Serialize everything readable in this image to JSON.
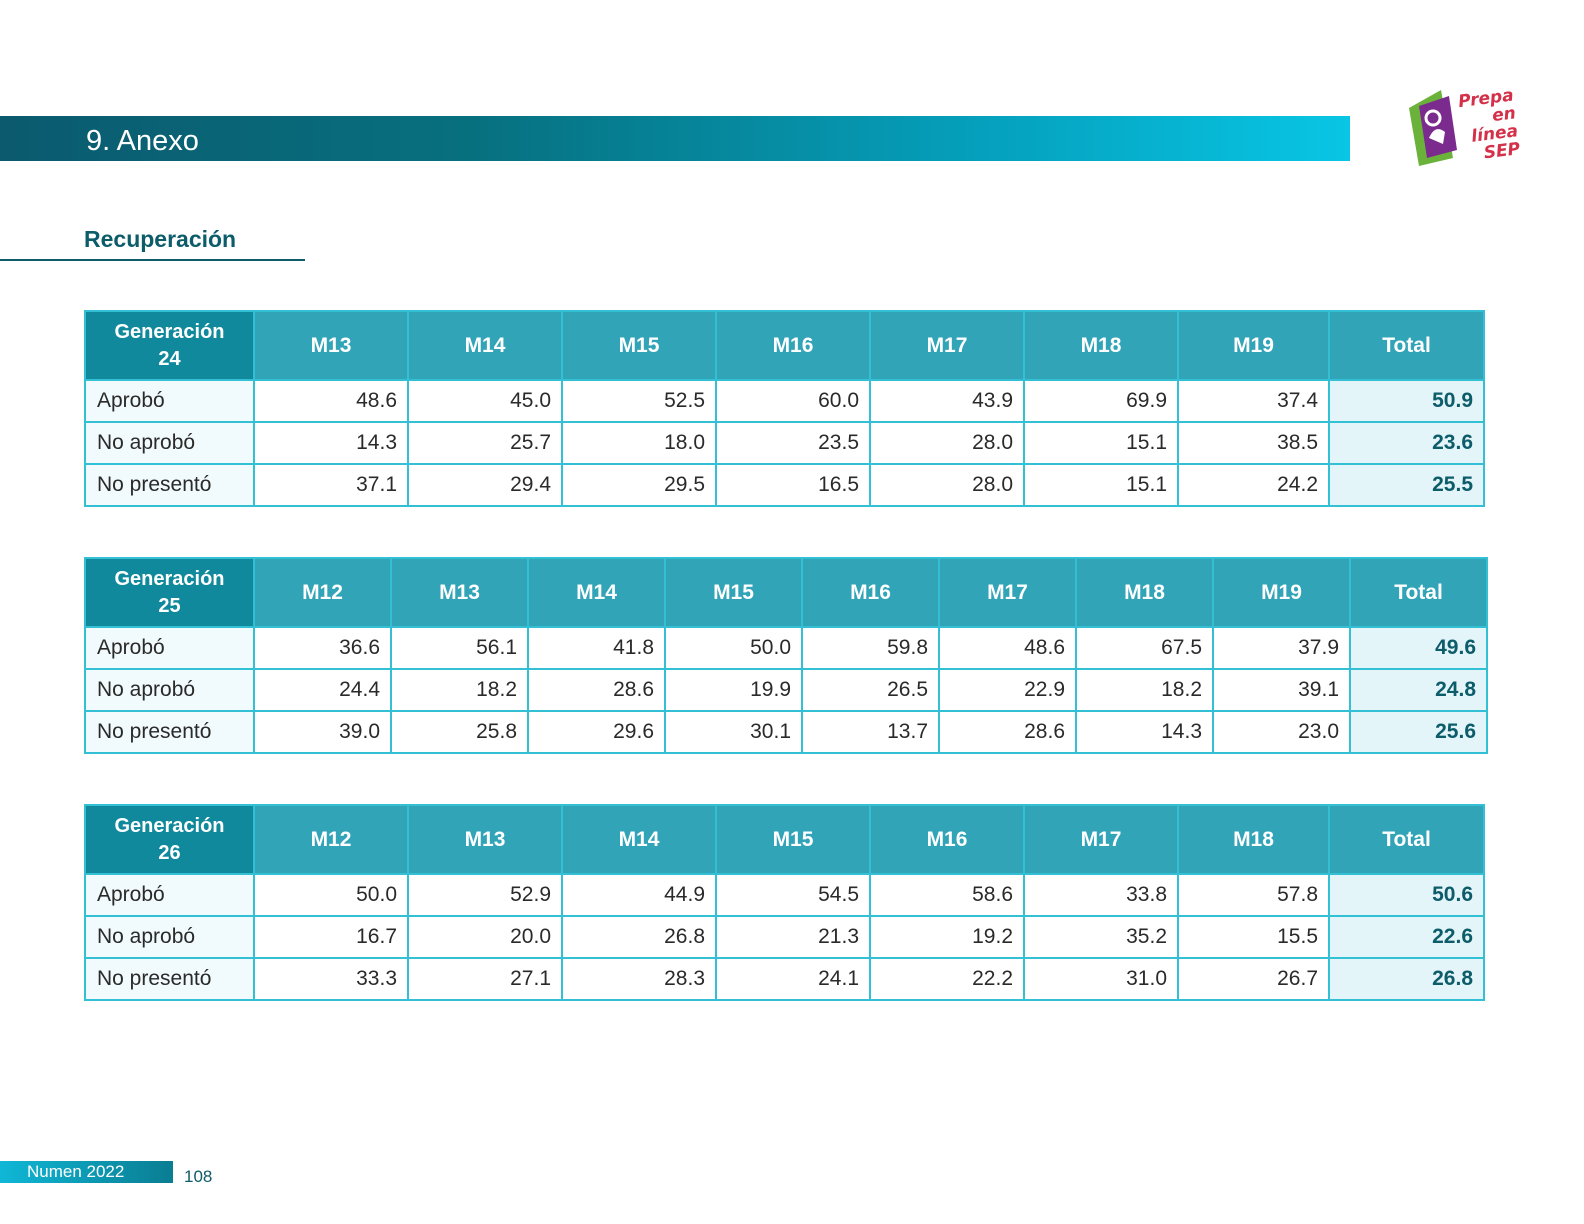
{
  "header": {
    "title": "9. Anexo"
  },
  "logo": {
    "line1": "Prepa en",
    "line2": "línea",
    "line3": "SEP"
  },
  "subsection": {
    "title": "Recuperación"
  },
  "tables": [
    {
      "corner": [
        "Generación",
        "24"
      ],
      "columns": [
        "M13",
        "M14",
        "M15",
        "M16",
        "M17",
        "M18",
        "M19",
        "Total"
      ],
      "rows": [
        {
          "label": "Aprobó",
          "values": [
            "48.6",
            "45.0",
            "52.5",
            "60.0",
            "43.9",
            "69.9",
            "37.4",
            "50.9"
          ]
        },
        {
          "label": "No aprobó",
          "values": [
            "14.3",
            "25.7",
            "18.0",
            "23.5",
            "28.0",
            "15.1",
            "38.5",
            "23.6"
          ]
        },
        {
          "label": "No presentó",
          "values": [
            "37.1",
            "29.4",
            "29.5",
            "16.5",
            "28.0",
            "15.1",
            "24.2",
            "25.5"
          ]
        }
      ]
    },
    {
      "corner": [
        "Generación",
        "25"
      ],
      "columns": [
        "M12",
        "M13",
        "M14",
        "M15",
        "M16",
        "M17",
        "M18",
        "M19",
        "Total"
      ],
      "rows": [
        {
          "label": "Aprobó",
          "values": [
            "36.6",
            "56.1",
            "41.8",
            "50.0",
            "59.8",
            "48.6",
            "67.5",
            "37.9",
            "49.6"
          ]
        },
        {
          "label": "No aprobó",
          "values": [
            "24.4",
            "18.2",
            "28.6",
            "19.9",
            "26.5",
            "22.9",
            "18.2",
            "39.1",
            "24.8"
          ]
        },
        {
          "label": "No presentó",
          "values": [
            "39.0",
            "25.8",
            "29.6",
            "30.1",
            "13.7",
            "28.6",
            "14.3",
            "23.0",
            "25.6"
          ]
        }
      ]
    },
    {
      "corner": [
        "Generación",
        "26"
      ],
      "columns": [
        "M12",
        "M13",
        "M14",
        "M15",
        "M16",
        "M17",
        "M18",
        "Total"
      ],
      "rows": [
        {
          "label": "Aprobó",
          "values": [
            "50.0",
            "52.9",
            "44.9",
            "54.5",
            "58.6",
            "33.8",
            "57.8",
            "50.6"
          ]
        },
        {
          "label": "No aprobó",
          "values": [
            "16.7",
            "20.0",
            "26.8",
            "21.3",
            "19.2",
            "35.2",
            "15.5",
            "22.6"
          ]
        },
        {
          "label": "No presentó",
          "values": [
            "33.3",
            "27.1",
            "28.3",
            "24.1",
            "22.2",
            "31.0",
            "26.7",
            "26.8"
          ]
        }
      ]
    }
  ],
  "footer": {
    "publication": "Numen 2022",
    "page": "108"
  },
  "colors": {
    "brand_dark": "#0c5c6a",
    "header_cell": "#32a4b8",
    "corner_cell": "#10899c",
    "grid": "#33c0d4",
    "logo_green": "#6bb23a",
    "logo_purple": "#7b2b8e",
    "logo_red": "#d4304a"
  }
}
